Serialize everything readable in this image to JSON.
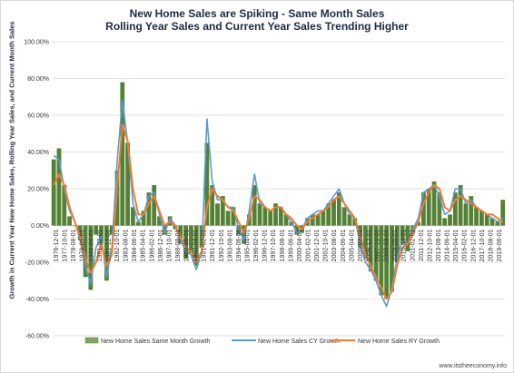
{
  "chart_data": {
    "type": "bar",
    "title": "New Home Sales are Spiking - Same Month Sales",
    "subtitle": "Rolling Year Sales and Current Year Sales Trending Higher",
    "ylabel": "Growth in Current Year New Home Sales, Rolling Year Sales, and Current Month Sales",
    "ylim": [
      -0.6,
      1.0
    ],
    "y_ticks": [
      "100.00%",
      "80.00%",
      "60.00%",
      "40.00%",
      "20.00%",
      "0.00%",
      "-20.00%",
      "-40.00%",
      "-60.00%"
    ],
    "x_ticks": [
      "1976-12-01",
      "1977-10-01",
      "1978-08-01",
      "1979-06-01",
      "1980-04-01",
      "1981-02-01",
      "1981-12-01",
      "1982-10-01",
      "1983-08-01",
      "1984-06-01",
      "1985-04-01",
      "1986-02-01",
      "1986-12-01",
      "1987-10-01",
      "1988-08-01",
      "1989-06-01",
      "1990-04-01",
      "1991-02-01",
      "1991-12-01",
      "1992-10-01",
      "1993-08-01",
      "1994-06-01",
      "1995-04-01",
      "1996-02-01",
      "1996-12-01",
      "1997-10-01",
      "1998-08-01",
      "1999-06-01",
      "2000-04-01",
      "2001-02-01",
      "2001-12-01",
      "2002-10-01",
      "2003-08-01",
      "2004-06-01",
      "2005-04-01",
      "2006-02-01",
      "2006-12-01",
      "2007-10-01",
      "2008-08-01",
      "2009-06-01",
      "2010-04-01",
      "2011-02-01",
      "2011-12-01",
      "2012-10-01",
      "2013-08-01",
      "2014-06-01",
      "2015-04-01",
      "2016-02-01",
      "2016-12-01",
      "2017-10-01",
      "2018-08-01",
      "2019-06-01"
    ],
    "x_range": [
      "1976-12",
      "2019-08"
    ],
    "grid": true,
    "legend_position": "bottom",
    "series": [
      {
        "name": "New Home Sales Same Month Growth",
        "type": "bar",
        "color": "#548235",
        "x": [
          1977.0,
          1977.5,
          1978.0,
          1978.5,
          1979.0,
          1979.5,
          1980.0,
          1980.5,
          1981.0,
          1981.5,
          1982.0,
          1982.5,
          1983.0,
          1983.5,
          1984.0,
          1984.5,
          1985.0,
          1985.5,
          1986.0,
          1986.5,
          1987.0,
          1987.5,
          1988.0,
          1988.5,
          1989.0,
          1989.5,
          1990.0,
          1990.5,
          1991.0,
          1991.5,
          1992.0,
          1992.5,
          1993.0,
          1993.5,
          1994.0,
          1994.5,
          1995.0,
          1995.5,
          1996.0,
          1996.5,
          1997.0,
          1997.5,
          1998.0,
          1998.5,
          1999.0,
          1999.5,
          2000.0,
          2000.5,
          2001.0,
          2001.5,
          2002.0,
          2002.5,
          2003.0,
          2003.5,
          2004.0,
          2004.5,
          2005.0,
          2005.5,
          2006.0,
          2006.5,
          2007.0,
          2007.5,
          2008.0,
          2008.5,
          2009.0,
          2009.5,
          2010.0,
          2010.5,
          2011.0,
          2011.5,
          2012.0,
          2012.5,
          2013.0,
          2013.5,
          2014.0,
          2014.5,
          2015.0,
          2015.5,
          2016.0,
          2016.5,
          2017.0,
          2017.5,
          2018.0,
          2018.5,
          2019.0,
          2019.5
        ],
        "values": [
          0.36,
          0.42,
          0.22,
          0.05,
          0.0,
          -0.08,
          -0.28,
          -0.35,
          -0.05,
          -0.1,
          -0.3,
          -0.05,
          0.3,
          0.78,
          0.45,
          0.1,
          0.02,
          0.08,
          0.18,
          0.22,
          0.05,
          -0.05,
          0.05,
          -0.02,
          -0.1,
          -0.18,
          -0.15,
          -0.22,
          -0.12,
          0.45,
          0.22,
          0.12,
          0.16,
          0.08,
          0.1,
          -0.05,
          -0.1,
          0.06,
          0.22,
          0.12,
          0.1,
          0.08,
          0.12,
          0.1,
          0.06,
          0.02,
          -0.05,
          -0.04,
          0.04,
          0.06,
          0.06,
          0.08,
          0.12,
          0.14,
          0.18,
          0.1,
          0.06,
          0.04,
          -0.12,
          -0.18,
          -0.25,
          -0.3,
          -0.38,
          -0.4,
          -0.36,
          -0.2,
          -0.1,
          -0.14,
          -0.04,
          0.02,
          0.18,
          0.2,
          0.24,
          0.18,
          0.04,
          0.06,
          0.18,
          0.22,
          0.12,
          0.16,
          0.1,
          0.08,
          0.06,
          0.04,
          0.02,
          0.14
        ]
      },
      {
        "name": "New Home Sales CY Growth",
        "type": "line",
        "color": "#5b9bd5",
        "x": [
          1977.0,
          1977.5,
          1978.0,
          1978.5,
          1979.0,
          1979.5,
          1980.0,
          1980.5,
          1981.0,
          1981.5,
          1982.0,
          1982.5,
          1983.0,
          1983.5,
          1984.0,
          1984.5,
          1985.0,
          1985.5,
          1986.0,
          1986.5,
          1987.0,
          1987.5,
          1988.0,
          1988.5,
          1989.0,
          1989.5,
          1990.0,
          1990.5,
          1991.0,
          1991.5,
          1992.0,
          1992.5,
          1993.0,
          1993.5,
          1994.0,
          1994.5,
          1995.0,
          1995.5,
          1996.0,
          1996.5,
          1997.0,
          1997.5,
          1998.0,
          1998.5,
          1999.0,
          1999.5,
          2000.0,
          2000.5,
          2001.0,
          2001.5,
          2002.0,
          2002.5,
          2003.0,
          2003.5,
          2004.0,
          2004.5,
          2005.0,
          2005.5,
          2006.0,
          2006.5,
          2007.0,
          2007.5,
          2008.0,
          2008.5,
          2009.0,
          2009.5,
          2010.0,
          2010.5,
          2011.0,
          2011.5,
          2012.0,
          2012.5,
          2013.0,
          2013.5,
          2014.0,
          2014.5,
          2015.0,
          2015.5,
          2016.0,
          2016.5,
          2017.0,
          2017.5,
          2018.0,
          2018.5,
          2019.0,
          2019.5
        ],
        "values": [
          0.38,
          0.36,
          0.2,
          0.08,
          0.02,
          -0.08,
          -0.22,
          -0.32,
          -0.12,
          -0.06,
          -0.28,
          -0.12,
          0.35,
          0.68,
          0.45,
          0.12,
          0.02,
          0.06,
          0.16,
          0.18,
          0.06,
          -0.04,
          0.04,
          0.0,
          -0.08,
          -0.14,
          -0.16,
          -0.24,
          -0.14,
          0.58,
          0.24,
          0.14,
          0.14,
          0.1,
          0.1,
          -0.02,
          -0.08,
          0.08,
          0.28,
          0.12,
          0.1,
          0.08,
          0.1,
          0.1,
          0.06,
          0.02,
          -0.04,
          -0.02,
          0.04,
          0.06,
          0.08,
          0.08,
          0.12,
          0.16,
          0.2,
          0.12,
          0.06,
          0.04,
          -0.1,
          -0.2,
          -0.24,
          -0.3,
          -0.38,
          -0.44,
          -0.34,
          -0.18,
          -0.08,
          -0.1,
          -0.02,
          0.04,
          0.18,
          0.2,
          0.22,
          0.16,
          0.06,
          0.08,
          0.2,
          0.2,
          0.12,
          0.14,
          0.1,
          0.08,
          0.06,
          0.04,
          0.02,
          0.04
        ]
      },
      {
        "name": "New Home Sales RY Growth",
        "type": "line",
        "color": "#ed7d31",
        "x": [
          1977.0,
          1977.5,
          1978.0,
          1978.5,
          1979.0,
          1979.5,
          1980.0,
          1980.5,
          1981.0,
          1981.5,
          1982.0,
          1982.5,
          1983.0,
          1983.5,
          1984.0,
          1984.5,
          1985.0,
          1985.5,
          1986.0,
          1986.5,
          1987.0,
          1987.5,
          1988.0,
          1988.5,
          1989.0,
          1989.5,
          1990.0,
          1990.5,
          1991.0,
          1991.5,
          1992.0,
          1992.5,
          1993.0,
          1993.5,
          1994.0,
          1994.5,
          1995.0,
          1995.5,
          1996.0,
          1996.5,
          1997.0,
          1997.5,
          1998.0,
          1998.5,
          1999.0,
          1999.5,
          2000.0,
          2000.5,
          2001.0,
          2001.5,
          2002.0,
          2002.5,
          2003.0,
          2003.5,
          2004.0,
          2004.5,
          2005.0,
          2005.5,
          2006.0,
          2006.5,
          2007.0,
          2007.5,
          2008.0,
          2008.5,
          2009.0,
          2009.5,
          2010.0,
          2010.5,
          2011.0,
          2011.5,
          2012.0,
          2012.5,
          2013.0,
          2013.5,
          2014.0,
          2014.5,
          2015.0,
          2015.5,
          2016.0,
          2016.5,
          2017.0,
          2017.5,
          2018.0,
          2018.5,
          2019.0,
          2019.5
        ],
        "values": [
          0.22,
          0.28,
          0.22,
          0.1,
          0.02,
          -0.06,
          -0.18,
          -0.26,
          -0.2,
          -0.1,
          -0.22,
          -0.16,
          0.2,
          0.55,
          0.46,
          0.2,
          0.06,
          0.06,
          0.12,
          0.16,
          0.08,
          0.0,
          0.02,
          0.0,
          -0.06,
          -0.12,
          -0.14,
          -0.2,
          -0.14,
          0.1,
          0.2,
          0.16,
          0.14,
          0.1,
          0.08,
          0.02,
          -0.04,
          0.04,
          0.16,
          0.14,
          0.1,
          0.08,
          0.1,
          0.1,
          0.06,
          0.04,
          0.0,
          -0.02,
          0.02,
          0.04,
          0.06,
          0.08,
          0.1,
          0.14,
          0.16,
          0.12,
          0.08,
          0.04,
          -0.06,
          -0.16,
          -0.22,
          -0.28,
          -0.34,
          -0.4,
          -0.36,
          -0.22,
          -0.12,
          -0.1,
          -0.04,
          0.02,
          0.12,
          0.18,
          0.22,
          0.2,
          0.1,
          0.08,
          0.14,
          0.16,
          0.14,
          0.12,
          0.1,
          0.08,
          0.06,
          0.06,
          0.04,
          0.02
        ]
      }
    ]
  },
  "footer": "www.itstheeconomy.info"
}
